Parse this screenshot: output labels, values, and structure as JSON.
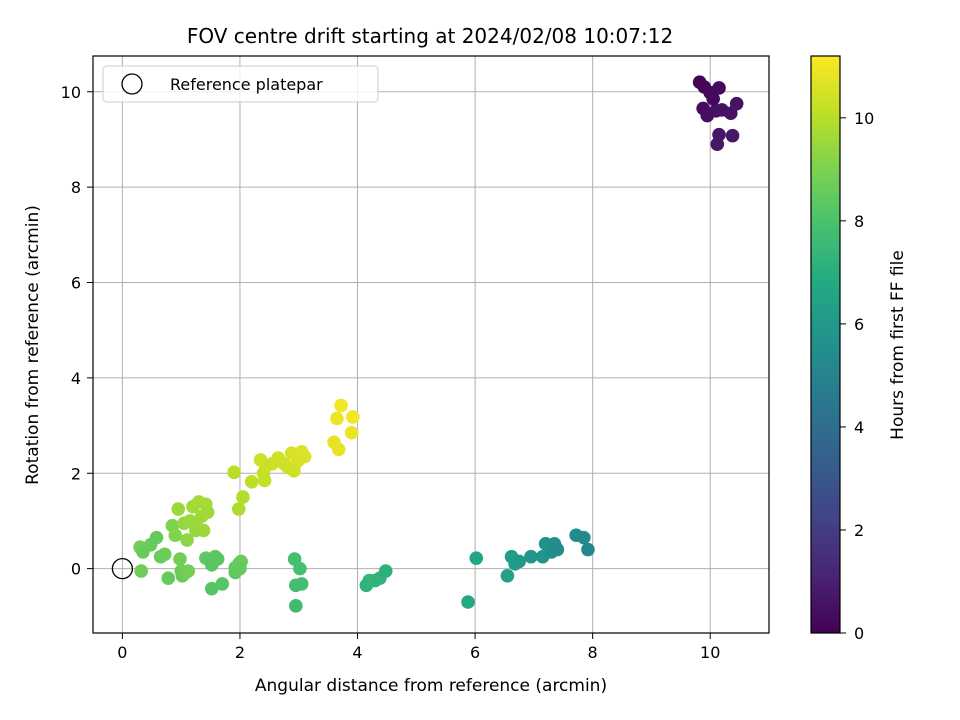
{
  "chart_data": {
    "type": "scatter",
    "title": "FOV centre drift starting at 2024/02/08 10:07:12",
    "xlabel": "Angular distance from reference (arcmin)",
    "ylabel": "Rotation from reference (arcmin)",
    "xlim": [
      -0.5,
      11.0
    ],
    "ylim": [
      -1.35,
      10.75
    ],
    "xticks": [
      0,
      2,
      4,
      6,
      8,
      10
    ],
    "yticks": [
      0,
      2,
      4,
      6,
      8,
      10
    ],
    "grid": true,
    "legend": {
      "placement": "upper-left",
      "entries": [
        "Reference platepar"
      ]
    },
    "reference_point": {
      "x": 0,
      "y": 0,
      "marker": "open-circle",
      "label": "Reference platepar"
    },
    "colorbar": {
      "label": "Hours from first FF file",
      "colormap": "viridis",
      "range": [
        0,
        11.2
      ],
      "ticks": [
        0,
        2,
        4,
        6,
        8,
        10
      ]
    },
    "series": [
      {
        "name": "",
        "color_variable": "Hours from first FF file",
        "points": [
          {
            "x": 9.82,
            "y": 10.2,
            "c": 0.1
          },
          {
            "x": 9.9,
            "y": 10.1,
            "c": 0.15
          },
          {
            "x": 10.0,
            "y": 9.98,
            "c": 0.2
          },
          {
            "x": 10.05,
            "y": 9.85,
            "c": 0.25
          },
          {
            "x": 10.15,
            "y": 10.08,
            "c": 0.3
          },
          {
            "x": 9.88,
            "y": 9.65,
            "c": 0.35
          },
          {
            "x": 9.95,
            "y": 9.5,
            "c": 0.4
          },
          {
            "x": 10.1,
            "y": 9.6,
            "c": 0.45
          },
          {
            "x": 10.2,
            "y": 9.62,
            "c": 0.5
          },
          {
            "x": 10.35,
            "y": 9.55,
            "c": 0.55
          },
          {
            "x": 10.45,
            "y": 9.75,
            "c": 0.6
          },
          {
            "x": 10.15,
            "y": 9.1,
            "c": 0.65
          },
          {
            "x": 10.38,
            "y": 9.08,
            "c": 0.7
          },
          {
            "x": 10.12,
            "y": 8.9,
            "c": 0.75
          },
          {
            "x": 5.88,
            "y": -0.7,
            "c": 6.8
          },
          {
            "x": 6.02,
            "y": 0.22,
            "c": 6.6
          },
          {
            "x": 6.55,
            "y": -0.15,
            "c": 6.4
          },
          {
            "x": 6.62,
            "y": 0.25,
            "c": 6.2
          },
          {
            "x": 6.68,
            "y": 0.1,
            "c": 6.1
          },
          {
            "x": 6.75,
            "y": 0.15,
            "c": 6.0
          },
          {
            "x": 6.95,
            "y": 0.25,
            "c": 5.9
          },
          {
            "x": 7.15,
            "y": 0.25,
            "c": 5.8
          },
          {
            "x": 7.2,
            "y": 0.52,
            "c": 5.7
          },
          {
            "x": 7.3,
            "y": 0.35,
            "c": 5.6
          },
          {
            "x": 7.35,
            "y": 0.52,
            "c": 5.5
          },
          {
            "x": 7.4,
            "y": 0.4,
            "c": 5.4
          },
          {
            "x": 7.72,
            "y": 0.7,
            "c": 5.3
          },
          {
            "x": 7.85,
            "y": 0.65,
            "c": 5.2
          },
          {
            "x": 7.92,
            "y": 0.4,
            "c": 5.1
          },
          {
            "x": 4.15,
            "y": -0.35,
            "c": 7.2
          },
          {
            "x": 4.2,
            "y": -0.25,
            "c": 7.3
          },
          {
            "x": 4.3,
            "y": -0.25,
            "c": 7.3
          },
          {
            "x": 4.38,
            "y": -0.2,
            "c": 7.2
          },
          {
            "x": 4.48,
            "y": -0.05,
            "c": 7.1
          },
          {
            "x": 2.93,
            "y": 0.2,
            "c": 7.8
          },
          {
            "x": 3.02,
            "y": 0.0,
            "c": 7.9
          },
          {
            "x": 2.95,
            "y": -0.35,
            "c": 7.8
          },
          {
            "x": 3.05,
            "y": -0.32,
            "c": 7.8
          },
          {
            "x": 2.95,
            "y": -0.78,
            "c": 7.7
          },
          {
            "x": 0.3,
            "y": 0.45,
            "c": 8.8
          },
          {
            "x": 0.32,
            "y": -0.05,
            "c": 8.7
          },
          {
            "x": 0.35,
            "y": 0.35,
            "c": 8.6
          },
          {
            "x": 0.48,
            "y": 0.5,
            "c": 8.6
          },
          {
            "x": 0.58,
            "y": 0.65,
            "c": 8.5
          },
          {
            "x": 0.65,
            "y": 0.25,
            "c": 8.6
          },
          {
            "x": 0.72,
            "y": 0.3,
            "c": 8.7
          },
          {
            "x": 0.78,
            "y": -0.2,
            "c": 8.5
          },
          {
            "x": 0.85,
            "y": 0.9,
            "c": 9.0
          },
          {
            "x": 0.9,
            "y": 0.7,
            "c": 9.1
          },
          {
            "x": 0.98,
            "y": 0.2,
            "c": 8.8
          },
          {
            "x": 1.0,
            "y": -0.05,
            "c": 8.7
          },
          {
            "x": 1.02,
            "y": -0.15,
            "c": 8.6
          },
          {
            "x": 1.08,
            "y": -0.08,
            "c": 8.7
          },
          {
            "x": 1.12,
            "y": -0.05,
            "c": 8.8
          },
          {
            "x": 1.42,
            "y": 0.22,
            "c": 8.4
          },
          {
            "x": 1.5,
            "y": 0.18,
            "c": 8.3
          },
          {
            "x": 1.52,
            "y": 0.08,
            "c": 8.3
          },
          {
            "x": 1.58,
            "y": 0.25,
            "c": 8.4
          },
          {
            "x": 1.62,
            "y": 0.2,
            "c": 8.3
          },
          {
            "x": 1.52,
            "y": -0.42,
            "c": 8.2
          },
          {
            "x": 1.7,
            "y": -0.32,
            "c": 8.2
          },
          {
            "x": 1.92,
            "y": 0.02,
            "c": 8.4
          },
          {
            "x": 1.98,
            "y": 0.1,
            "c": 8.5
          },
          {
            "x": 2.02,
            "y": 0.15,
            "c": 8.6
          },
          {
            "x": 1.92,
            "y": -0.08,
            "c": 8.4
          },
          {
            "x": 2.0,
            "y": 0.0,
            "c": 8.5
          },
          {
            "x": 0.95,
            "y": 1.25,
            "c": 9.5
          },
          {
            "x": 1.05,
            "y": 0.95,
            "c": 9.4
          },
          {
            "x": 1.1,
            "y": 0.6,
            "c": 9.3
          },
          {
            "x": 1.15,
            "y": 1.0,
            "c": 9.5
          },
          {
            "x": 1.2,
            "y": 1.3,
            "c": 9.6
          },
          {
            "x": 1.25,
            "y": 0.8,
            "c": 9.4
          },
          {
            "x": 1.3,
            "y": 1.4,
            "c": 9.7
          },
          {
            "x": 1.35,
            "y": 1.1,
            "c": 9.6
          },
          {
            "x": 1.38,
            "y": 0.8,
            "c": 9.5
          },
          {
            "x": 1.42,
            "y": 1.35,
            "c": 9.7
          },
          {
            "x": 1.45,
            "y": 1.18,
            "c": 9.6
          },
          {
            "x": 1.25,
            "y": 0.95,
            "c": 9.5
          },
          {
            "x": 1.9,
            "y": 2.02,
            "c": 10.0
          },
          {
            "x": 1.98,
            "y": 1.25,
            "c": 9.8
          },
          {
            "x": 2.05,
            "y": 1.5,
            "c": 9.9
          },
          {
            "x": 2.2,
            "y": 1.82,
            "c": 10.1
          },
          {
            "x": 2.35,
            "y": 2.28,
            "c": 10.3
          },
          {
            "x": 2.4,
            "y": 2.0,
            "c": 10.2
          },
          {
            "x": 2.42,
            "y": 1.85,
            "c": 10.2
          },
          {
            "x": 2.45,
            "y": 2.15,
            "c": 10.3
          },
          {
            "x": 2.55,
            "y": 2.2,
            "c": 10.3
          },
          {
            "x": 2.65,
            "y": 2.32,
            "c": 10.4
          },
          {
            "x": 2.75,
            "y": 2.2,
            "c": 10.4
          },
          {
            "x": 2.82,
            "y": 2.12,
            "c": 10.4
          },
          {
            "x": 2.88,
            "y": 2.42,
            "c": 10.5
          },
          {
            "x": 2.92,
            "y": 2.05,
            "c": 10.4
          },
          {
            "x": 2.98,
            "y": 2.25,
            "c": 10.5
          },
          {
            "x": 3.05,
            "y": 2.45,
            "c": 10.6
          },
          {
            "x": 3.1,
            "y": 2.35,
            "c": 10.6
          },
          {
            "x": 3.6,
            "y": 2.65,
            "c": 10.8
          },
          {
            "x": 3.65,
            "y": 3.15,
            "c": 10.9
          },
          {
            "x": 3.68,
            "y": 2.5,
            "c": 10.8
          },
          {
            "x": 3.72,
            "y": 3.42,
            "c": 11.0
          },
          {
            "x": 3.9,
            "y": 2.85,
            "c": 10.9
          },
          {
            "x": 3.92,
            "y": 3.18,
            "c": 11.0
          }
        ]
      }
    ]
  }
}
